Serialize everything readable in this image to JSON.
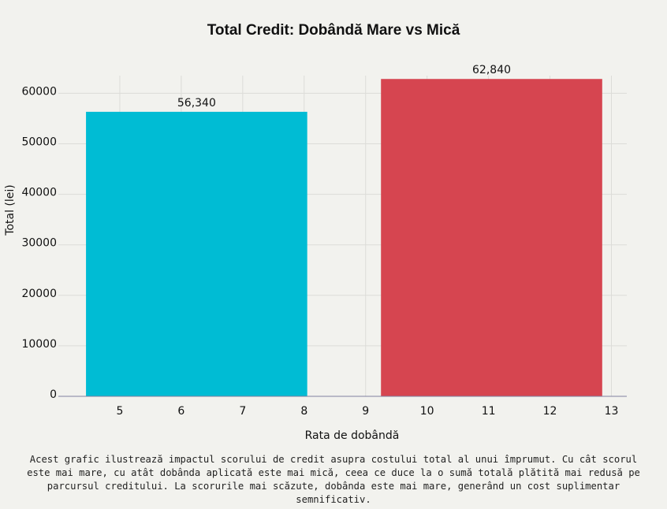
{
  "chart_data": {
    "type": "bar",
    "title": "Total Credit: Dobândă Mare vs Mică",
    "xlabel": "Rata de dobândă",
    "ylabel": "Total (lei)",
    "xlim": [
      4,
      13.25
    ],
    "ylim": [
      0,
      63500
    ],
    "x_ticks": [
      5,
      6,
      7,
      8,
      9,
      10,
      11,
      12,
      13
    ],
    "y_ticks": [
      0,
      10000,
      20000,
      30000,
      40000,
      50000,
      60000
    ],
    "grid": true,
    "bars": [
      {
        "x0": 4.45,
        "x1": 8.05,
        "value": 56340,
        "label": "56,340",
        "color": "#00bcd4"
      },
      {
        "x0": 9.25,
        "x1": 12.85,
        "value": 62840,
        "label": "62,840",
        "color": "#d64550"
      }
    ]
  },
  "caption": "Acest grafic ilustrează impactul scorului de credit asupra costului total al unui împrumut. Cu cât scorul este mai mare, cu atât dobânda aplicată este mai mică, ceea ce duce la o sumă totală plătită mai redusă pe parcursul creditului. La scorurile mai scăzute, dobânda este mai mare, generând un cost suplimentar semnificativ."
}
